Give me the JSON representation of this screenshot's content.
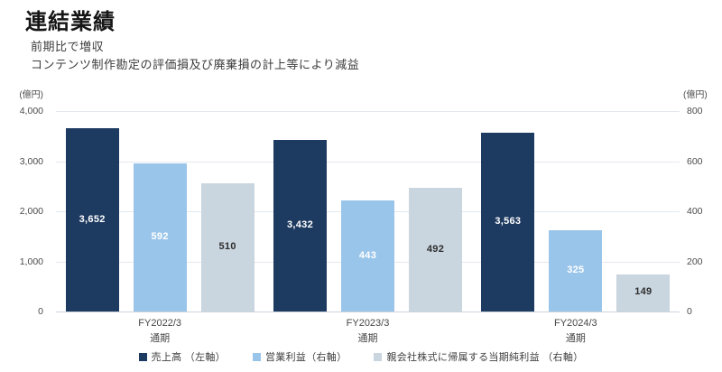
{
  "page": {
    "title": "連結業績",
    "subtitle_lines": [
      "前期比で増収",
      "コンテンツ制作勘定の評価損及び廃棄損の計上等により減益"
    ]
  },
  "colors": {
    "net_sales_bar": "#1d3a60",
    "operating_profit_bar": "#9ac5ea",
    "net_income_bar": "#c9d5df",
    "grid": "#e4e8ed",
    "axis_text": "#4a4a4a"
  },
  "chart_data": {
    "type": "bar",
    "title": "連結業績",
    "categories": [
      "FY2022/3 通期",
      "FY2023/3 通期",
      "FY2024/3 通期"
    ],
    "category_lines": [
      {
        "line1": "FY2022/3",
        "line2": "通期"
      },
      {
        "line1": "FY2023/3",
        "line2": "通期"
      },
      {
        "line1": "FY2024/3",
        "line2": "通期"
      }
    ],
    "series": [
      {
        "name": "売上高 （左軸）",
        "axis": "left",
        "color": "#1d3a60",
        "label_color": "#ffffff",
        "values": [
          3652,
          3432,
          3563
        ],
        "labels": [
          "3,652",
          "3,432",
          "3,563"
        ]
      },
      {
        "name": "営業利益（右軸）",
        "axis": "right",
        "color": "#9ac5ea",
        "label_color": "#ffffff",
        "values": [
          592,
          443,
          325
        ],
        "labels": [
          "592",
          "443",
          "325"
        ]
      },
      {
        "name": "親会社株式に帰属する当期純利益 （右軸）",
        "axis": "right",
        "color": "#c9d5df",
        "label_color": "#2e2e2e",
        "values": [
          510,
          492,
          149
        ],
        "labels": [
          "510",
          "492",
          "149"
        ]
      }
    ],
    "left_axis": {
      "unit": "(億円)",
      "min": 0,
      "max": 4000,
      "ticks": [
        "4,000",
        "3,000",
        "2,000",
        "1,000",
        "0"
      ]
    },
    "right_axis": {
      "unit": "(億円)",
      "min": 0,
      "max": 800,
      "ticks": [
        "800",
        "600",
        "400",
        "200",
        "0"
      ]
    },
    "grid": true,
    "legend_position": "bottom"
  }
}
